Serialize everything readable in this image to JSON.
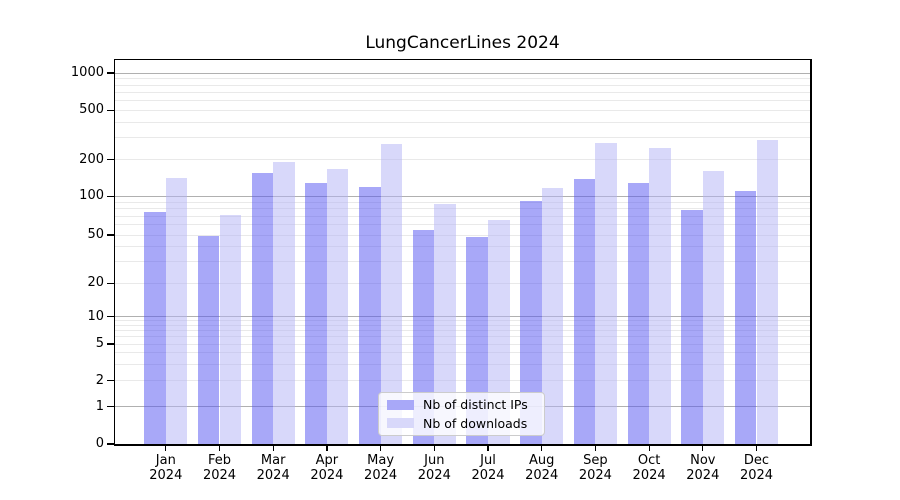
{
  "title": "LungCancerLines 2024",
  "chart_data": {
    "type": "bar",
    "title": "LungCancerLines 2024",
    "categories": [
      "Jan 2024",
      "Feb 2024",
      "Mar 2024",
      "Apr 2024",
      "May 2024",
      "Jun 2024",
      "Jul 2024",
      "Aug 2024",
      "Sep 2024",
      "Oct 2024",
      "Nov 2024",
      "Dec 2024"
    ],
    "month_labels": [
      "Jan",
      "Feb",
      "Mar",
      "Apr",
      "May",
      "Jun",
      "Jul",
      "Aug",
      "Sep",
      "Oct",
      "Nov",
      "Dec"
    ],
    "year_label": "2024",
    "series": [
      {
        "name": "Nb of distinct IPs",
        "color": "#a8a8f8",
        "values": [
          75,
          49,
          155,
          128,
          119,
          55,
          48,
          92,
          140,
          128,
          79,
          111
        ]
      },
      {
        "name": "Nb of downloads",
        "color": "#d8d8fa",
        "values": [
          142,
          72,
          193,
          168,
          266,
          88,
          66,
          117,
          274,
          248,
          162,
          288
        ]
      }
    ],
    "y_ticks": [
      0,
      1,
      2,
      5,
      10,
      20,
      50,
      100,
      200,
      500,
      1000
    ],
    "y_scale": "log-like",
    "ylim": [
      0,
      1300
    ],
    "grid": true,
    "gridline_major_values": [
      1,
      10,
      100,
      1000
    ],
    "gridline_color_major": "#b0b0b0",
    "gridline_color_minor": "#e9e9e9",
    "legend_position": "lower center",
    "background_color": "#ffffff"
  }
}
